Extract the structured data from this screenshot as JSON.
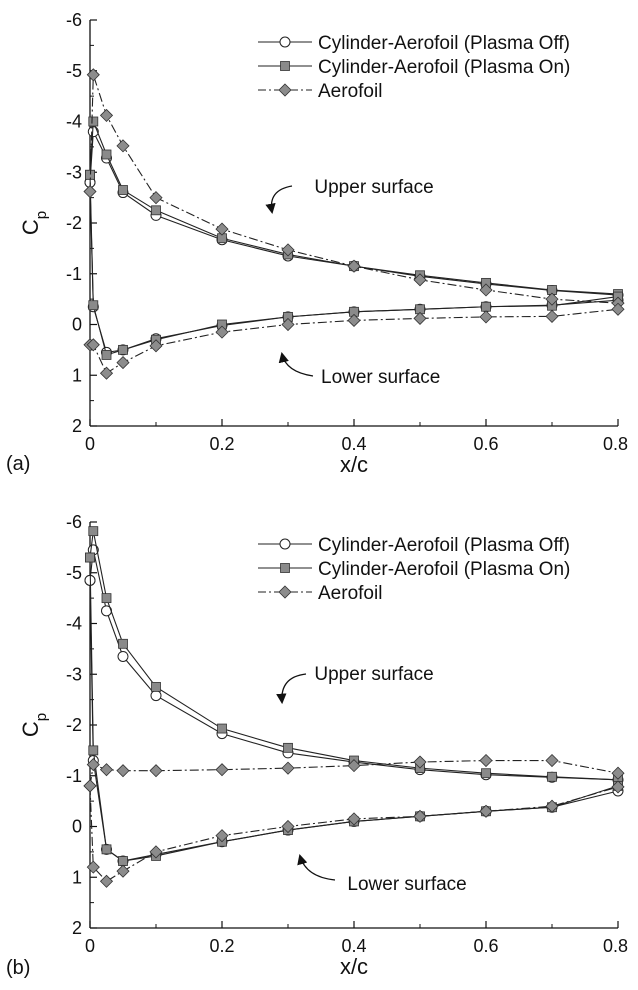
{
  "chart_data": [
    {
      "type": "line",
      "panel_label": "(a)",
      "xlabel": "x/c",
      "ylabel": "C",
      "ylabel_subscript": "p",
      "xlim": [
        0,
        0.8
      ],
      "ylim": [
        -6,
        2
      ],
      "y_inverted": true,
      "grid": false,
      "legend_position": "top-right",
      "xticks": [
        0,
        0.2,
        0.4,
        0.6,
        0.8
      ],
      "xtick_labels": [
        "0",
        "0.2",
        "0.4",
        "0.6",
        "0.8"
      ],
      "yticks": [
        -6,
        -5,
        -4,
        -3,
        -2,
        -1,
        0,
        1,
        2
      ],
      "ytick_labels": [
        "-6",
        "-5",
        "-4",
        "-3",
        "-2",
        "-1",
        "0",
        "1",
        "2"
      ],
      "series": [
        {
          "name": "Cylinder-Aerofoil (Plasma Off)",
          "marker": "circle",
          "line": "solid",
          "upper": {
            "x": [
              0,
              0.005,
              0.025,
              0.05,
              0.1,
              0.2,
              0.3,
              0.4,
              0.5,
              0.6,
              0.7,
              0.8
            ],
            "y": [
              -2.8,
              -3.8,
              -3.28,
              -2.6,
              -2.15,
              -1.67,
              -1.35,
              -1.15,
              -0.95,
              -0.8,
              -0.67,
              -0.58
            ]
          },
          "lower": {
            "x": [
              0,
              0.005,
              0.025,
              0.05,
              0.1,
              0.2,
              0.3,
              0.4,
              0.5,
              0.6,
              0.7,
              0.8
            ],
            "y": [
              -2.8,
              -0.35,
              0.55,
              0.5,
              0.28,
              0.02,
              -0.15,
              -0.25,
              -0.3,
              -0.35,
              -0.38,
              -0.48
            ]
          }
        },
        {
          "name": "Cylinder-Aerofoil (Plasma On)",
          "marker": "square",
          "line": "solid",
          "upper": {
            "x": [
              0,
              0.005,
              0.025,
              0.05,
              0.1,
              0.2,
              0.3,
              0.4,
              0.5,
              0.6,
              0.7,
              0.8
            ],
            "y": [
              -2.95,
              -4.0,
              -3.35,
              -2.65,
              -2.25,
              -1.7,
              -1.38,
              -1.15,
              -0.97,
              -0.82,
              -0.68,
              -0.6
            ]
          },
          "lower": {
            "x": [
              0,
              0.005,
              0.025,
              0.05,
              0.1,
              0.2,
              0.3,
              0.4,
              0.5,
              0.6,
              0.7,
              0.8
            ],
            "y": [
              -2.95,
              -0.38,
              0.6,
              0.5,
              0.3,
              0.0,
              -0.15,
              -0.25,
              -0.3,
              -0.35,
              -0.37,
              -0.55
            ]
          }
        },
        {
          "name": "Aerofoil",
          "marker": "diamond",
          "line": "dashdot",
          "upper": {
            "x": [
              0,
              0.005,
              0.025,
              0.05,
              0.1,
              0.2,
              0.3,
              0.4,
              0.5,
              0.6,
              0.7,
              0.8
            ],
            "y": [
              -2.62,
              -4.92,
              -4.12,
              -3.52,
              -2.5,
              -1.88,
              -1.47,
              -1.15,
              -0.88,
              -0.68,
              -0.5,
              -0.42
            ]
          },
          "lower": {
            "x": [
              0,
              0.005,
              0.025,
              0.05,
              0.1,
              0.2,
              0.3,
              0.4,
              0.5,
              0.6,
              0.7,
              0.8
            ],
            "y": [
              0.4,
              0.4,
              0.96,
              0.75,
              0.42,
              0.15,
              0.0,
              -0.08,
              -0.12,
              -0.15,
              -0.16,
              -0.3
            ]
          }
        }
      ],
      "annotations": [
        {
          "text": "Upper surface",
          "x": 0.34,
          "y": -2.05
        },
        {
          "text": "Lower surface",
          "x": 0.35,
          "y": 0.85
        }
      ]
    },
    {
      "type": "line",
      "panel_label": "(b)",
      "xlabel": "x/c",
      "ylabel": "C",
      "ylabel_subscript": "p",
      "xlim": [
        0,
        0.8
      ],
      "ylim": [
        -6,
        2
      ],
      "y_inverted": true,
      "grid": false,
      "legend_position": "top-right",
      "xticks": [
        0,
        0.2,
        0.4,
        0.6,
        0.8
      ],
      "xtick_labels": [
        "0",
        "0.2",
        "0.4",
        "0.6",
        "0.8"
      ],
      "yticks": [
        -6,
        -5,
        -4,
        -3,
        -2,
        -1,
        0,
        1,
        2
      ],
      "ytick_labels": [
        "-6",
        "-5",
        "-4",
        "-3",
        "-2",
        "-1",
        "0",
        "1",
        "2"
      ],
      "series": [
        {
          "name": "Cylinder-Aerofoil (Plasma Off)",
          "marker": "circle",
          "line": "solid",
          "upper": {
            "x": [
              0,
              0.005,
              0.025,
              0.05,
              0.1,
              0.2,
              0.3,
              0.4,
              0.5,
              0.6,
              0.7,
              0.8
            ],
            "y": [
              -4.85,
              -5.45,
              -4.25,
              -3.35,
              -2.58,
              -1.83,
              -1.45,
              -1.27,
              -1.12,
              -1.02,
              -0.97,
              -0.92
            ]
          },
          "lower": {
            "x": [
              0,
              0.005,
              0.025,
              0.05,
              0.1,
              0.2,
              0.3,
              0.4,
              0.5,
              0.6,
              0.7,
              0.8
            ],
            "y": [
              -4.85,
              -1.3,
              0.45,
              0.68,
              0.55,
              0.3,
              0.07,
              -0.1,
              -0.2,
              -0.3,
              -0.38,
              -0.7
            ]
          }
        },
        {
          "name": "Cylinder-Aerofoil (Plasma On)",
          "marker": "square",
          "line": "solid",
          "upper": {
            "x": [
              0,
              0.005,
              0.025,
              0.05,
              0.1,
              0.2,
              0.3,
              0.4,
              0.5,
              0.6,
              0.7,
              0.8
            ],
            "y": [
              -5.3,
              -5.82,
              -4.5,
              -3.6,
              -2.75,
              -1.93,
              -1.55,
              -1.3,
              -1.15,
              -1.05,
              -0.98,
              -0.92
            ]
          },
          "lower": {
            "x": [
              0,
              0.005,
              0.025,
              0.05,
              0.1,
              0.2,
              0.3,
              0.4,
              0.5,
              0.6,
              0.7,
              0.8
            ],
            "y": [
              -5.3,
              -1.5,
              0.45,
              0.68,
              0.58,
              0.3,
              0.07,
              -0.1,
              -0.2,
              -0.3,
              -0.38,
              -0.8
            ]
          }
        },
        {
          "name": "Aerofoil",
          "marker": "diamond",
          "line": "dashdot",
          "upper": {
            "x": [
              0,
              0.005,
              0.025,
              0.05,
              0.1,
              0.2,
              0.3,
              0.4,
              0.5,
              0.6,
              0.7,
              0.8
            ],
            "y": [
              -0.8,
              -1.22,
              -1.12,
              -1.1,
              -1.1,
              -1.12,
              -1.15,
              -1.2,
              -1.27,
              -1.3,
              -1.3,
              -1.05
            ]
          },
          "lower": {
            "x": [
              0,
              0.005,
              0.025,
              0.05,
              0.1,
              0.2,
              0.3,
              0.4,
              0.5,
              0.6,
              0.7,
              0.8
            ],
            "y": [
              -0.8,
              0.8,
              1.08,
              0.88,
              0.5,
              0.18,
              0.0,
              -0.15,
              -0.2,
              -0.3,
              -0.4,
              -0.78
            ]
          }
        }
      ],
      "annotations": [
        {
          "text": "Upper surface",
          "x": 0.34,
          "y": -2.85
        },
        {
          "text": "Lower surface",
          "x": 0.39,
          "y": 1.0
        }
      ]
    }
  ]
}
